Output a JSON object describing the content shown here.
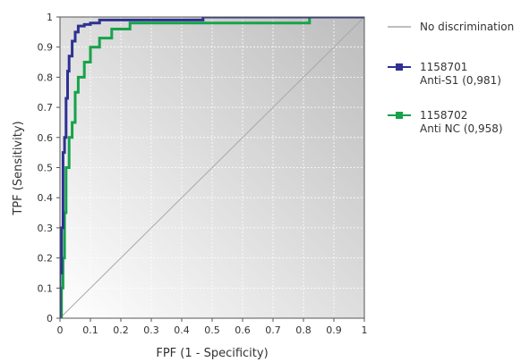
{
  "chart_data": {
    "type": "line",
    "xlabel": "FPF (1 - Specificity)",
    "ylabel": "TPF (Sensitivity)",
    "xlim": [
      0,
      1
    ],
    "ylim": [
      0,
      1
    ],
    "x_ticks": [
      "0",
      "0.1",
      "0.2",
      "0.3",
      "0.4",
      "0.5",
      "0.6",
      "0.7",
      "0.8",
      "0.9",
      "1"
    ],
    "y_ticks": [
      "0",
      "0.1",
      "0.2",
      "0.3",
      "0.4",
      "0.5",
      "0.6",
      "0.7",
      "0.8",
      "0.9",
      "1"
    ],
    "grid": true,
    "legend_position": "right",
    "background_gradient": [
      "#ffffff",
      "#bdbdbd"
    ],
    "series": [
      {
        "name": "No discrimination",
        "label_lines": [
          "No discrimination"
        ],
        "color": "#a8a8a8",
        "marker": "none",
        "x": [
          0,
          1
        ],
        "y": [
          0,
          1
        ]
      },
      {
        "name": "1158701 Anti-S1 (0,981)",
        "label_lines": [
          "1158701",
          "Anti-S1 (0,981)"
        ],
        "color": "#2e3192",
        "marker": "square",
        "x": [
          0,
          0,
          0.005,
          0.005,
          0.01,
          0.01,
          0.015,
          0.015,
          0.02,
          0.02,
          0.025,
          0.025,
          0.03,
          0.03,
          0.04,
          0.04,
          0.05,
          0.05,
          0.06,
          0.06,
          0.08,
          0.08,
          0.1,
          0.1,
          0.13,
          0.13,
          0.47,
          0.47,
          1
        ],
        "y": [
          0,
          0.15,
          0.15,
          0.3,
          0.3,
          0.55,
          0.55,
          0.6,
          0.6,
          0.73,
          0.73,
          0.82,
          0.82,
          0.87,
          0.87,
          0.92,
          0.92,
          0.95,
          0.95,
          0.97,
          0.97,
          0.975,
          0.975,
          0.98,
          0.98,
          0.99,
          0.99,
          1.0,
          1.0
        ]
      },
      {
        "name": "1158702 Anti NC (0,958)",
        "label_lines": [
          "1158702",
          "Anti NC (0,958)"
        ],
        "color": "#16a34a",
        "marker": "square",
        "x": [
          0,
          0.005,
          0.005,
          0.01,
          0.01,
          0.015,
          0.015,
          0.02,
          0.02,
          0.03,
          0.03,
          0.04,
          0.04,
          0.05,
          0.05,
          0.06,
          0.06,
          0.08,
          0.08,
          0.1,
          0.1,
          0.13,
          0.13,
          0.17,
          0.17,
          0.23,
          0.23,
          0.82,
          0.82,
          1
        ],
        "y": [
          0,
          0,
          0.1,
          0.1,
          0.2,
          0.2,
          0.35,
          0.35,
          0.5,
          0.5,
          0.6,
          0.6,
          0.65,
          0.65,
          0.75,
          0.75,
          0.8,
          0.8,
          0.85,
          0.85,
          0.9,
          0.9,
          0.93,
          0.93,
          0.96,
          0.96,
          0.98,
          0.98,
          1.0,
          1.0
        ]
      }
    ]
  }
}
